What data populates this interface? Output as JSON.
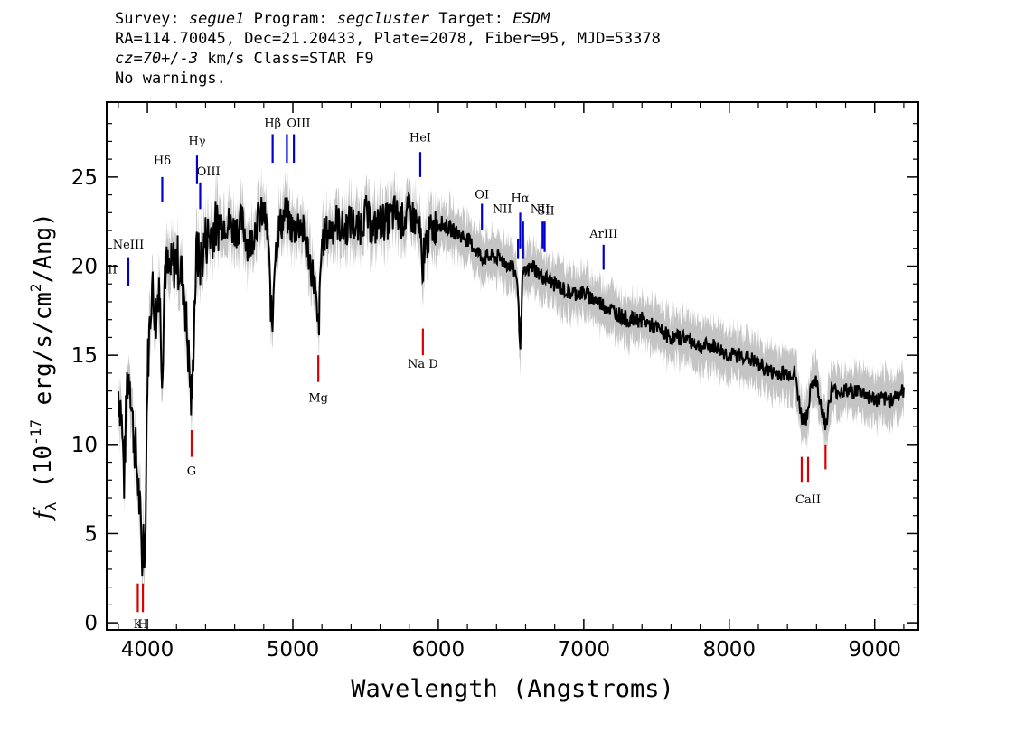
{
  "header": {
    "survey_label": "Survey:",
    "survey": "segue1",
    "program_label": "Program:",
    "program": "segcluster",
    "target_label": "Target:",
    "target": "ESDM",
    "line2": "RA=114.70045, Dec=21.20433, Plate=2078, Fiber=95, MJD=53378",
    "cz": "cz=70+/-3",
    "line3_rest": "km/s Class=STAR F9",
    "line4": "No warnings."
  },
  "chart_data": {
    "type": "line",
    "title": "",
    "xlabel": "Wavelength (Angstroms)",
    "ylabel": "f_λ (10^-17 erg/s/cm^2/Ang)",
    "xlim": [
      3720,
      9300
    ],
    "ylim": [
      -0.4,
      29.2
    ],
    "xticks": [
      4000,
      5000,
      6000,
      7000,
      8000,
      9000
    ],
    "yticks": [
      0,
      5,
      10,
      15,
      20,
      25
    ],
    "grid": false,
    "series": [
      {
        "color": "#000000",
        "x": [
          3800,
          3820,
          3840,
          3860,
          3880,
          3900,
          3920,
          3935,
          3950,
          3965,
          3970,
          3985,
          4000,
          4030,
          4060,
          4080,
          4102,
          4120,
          4150,
          4200,
          4250,
          4290,
          4300,
          4310,
          4320,
          4340,
          4360,
          4400,
          4450,
          4500,
          4550,
          4600,
          4650,
          4700,
          4750,
          4800,
          4830,
          4850,
          4861,
          4870,
          4900,
          4950,
          5000,
          5050,
          5100,
          5150,
          5170,
          5180,
          5200,
          5250,
          5300,
          5350,
          5400,
          5450,
          5500,
          5550,
          5600,
          5650,
          5700,
          5750,
          5800,
          5850,
          5880,
          5893,
          5900,
          5950,
          6000,
          6100,
          6200,
          6300,
          6400,
          6500,
          6540,
          6563,
          6580,
          6650,
          6700,
          6800,
          6900,
          7000,
          7100,
          7200,
          7300,
          7400,
          7500,
          7600,
          7700,
          7800,
          7900,
          8000,
          8100,
          8200,
          8300,
          8400,
          8450,
          8498,
          8542,
          8560,
          8600,
          8662,
          8700,
          8800,
          8900,
          9000,
          9100,
          9200
        ],
        "values": [
          13.0,
          12.0,
          8.0,
          13.5,
          14.0,
          11.0,
          9.5,
          8.0,
          6.0,
          3.0,
          5.0,
          4.5,
          14.0,
          19.0,
          17.0,
          19.5,
          14.0,
          20.0,
          19.5,
          20.5,
          19.0,
          14.0,
          12.5,
          13.0,
          17.0,
          21.0,
          20.0,
          21.5,
          22.0,
          22.5,
          22.5,
          22.0,
          22.5,
          21.0,
          22.5,
          23.0,
          21.5,
          17.5,
          16.5,
          20.0,
          22.0,
          23.0,
          22.0,
          22.5,
          21.0,
          19.0,
          16.5,
          17.0,
          21.5,
          22.0,
          22.5,
          22.0,
          22.5,
          22.0,
          23.0,
          22.0,
          22.5,
          22.5,
          23.0,
          22.5,
          23.0,
          22.5,
          21.5,
          18.0,
          21.0,
          22.0,
          22.5,
          22.0,
          21.5,
          20.5,
          20.5,
          20.0,
          19.5,
          15.5,
          19.5,
          20.0,
          19.5,
          19.0,
          18.5,
          18.5,
          18.0,
          17.5,
          17.0,
          17.0,
          16.5,
          16.0,
          16.0,
          15.5,
          15.5,
          15.0,
          15.0,
          14.5,
          14.0,
          14.0,
          14.0,
          11.5,
          11.5,
          13.5,
          13.5,
          11.0,
          13.0,
          13.0,
          13.0,
          12.5,
          12.5,
          13.0
        ]
      }
    ],
    "emission_lines": [
      {
        "label": "NeIII",
        "wave": 3869,
        "y_top": 20.5,
        "y_bottom": 18.9,
        "color": "#0000cc"
      },
      {
        "label": "Hδ",
        "wave": 4102,
        "y_top": 25.0,
        "y_bottom": 23.6,
        "color": "#0000cc"
      },
      {
        "label": "Hγ",
        "wave": 4341,
        "y_top": 26.2,
        "y_bottom": 24.6,
        "color": "#0000cc"
      },
      {
        "label": "OIII",
        "wave": 4363,
        "y_top": 24.7,
        "y_bottom": 23.2,
        "color": "#0000cc"
      },
      {
        "label": "Hβ",
        "wave": 4861,
        "y_top": 27.4,
        "y_bottom": 25.8,
        "color": "#0000cc"
      },
      {
        "label": "OIII",
        "wave": 4959,
        "y_top": 27.4,
        "y_bottom": 25.8,
        "color": "#0000cc"
      },
      {
        "label": "OIII",
        "wave": 5007,
        "y_top": 27.4,
        "y_bottom": 25.8,
        "color": "#0000cc"
      },
      {
        "label": "HeI",
        "wave": 5876,
        "y_top": 26.4,
        "y_bottom": 25.0,
        "color": "#0000cc"
      },
      {
        "label": "OI",
        "wave": 6300,
        "y_top": 23.5,
        "y_bottom": 22.0,
        "color": "#0000cc"
      },
      {
        "label": "NII",
        "wave": 6548,
        "y_top": 21.5,
        "y_bottom": 20.4,
        "color": "#0000cc"
      },
      {
        "label": "Hα",
        "wave": 6563,
        "y_top": 23.0,
        "y_bottom": 21.0,
        "color": "#0000cc"
      },
      {
        "label": "NII",
        "wave": 6583,
        "y_top": 22.5,
        "y_bottom": 20.4,
        "color": "#0000cc"
      },
      {
        "label": "SII",
        "wave": 6717,
        "y_top": 22.5,
        "y_bottom": 21.0,
        "color": "#0000cc"
      },
      {
        "label": "SII",
        "wave": 6731,
        "y_top": 22.5,
        "y_bottom": 20.8,
        "color": "#0000cc"
      },
      {
        "label": "ArIII",
        "wave": 7136,
        "y_top": 21.2,
        "y_bottom": 19.8,
        "color": "#0000cc"
      }
    ],
    "absorption_lines": [
      {
        "label": "K",
        "wave": 3934,
        "y_top": 2.2,
        "y_bottom": 0.6,
        "color": "#dd0000"
      },
      {
        "label": "H",
        "wave": 3969,
        "y_top": 2.2,
        "y_bottom": 0.6,
        "color": "#dd0000"
      },
      {
        "label": "G",
        "wave": 4304,
        "y_top": 10.8,
        "y_bottom": 9.3,
        "color": "#dd0000"
      },
      {
        "label": "Mg",
        "wave": 5175,
        "y_top": 15.0,
        "y_bottom": 13.5,
        "color": "#dd0000"
      },
      {
        "label": "Na D",
        "wave": 5894,
        "y_top": 16.5,
        "y_bottom": 15.0,
        "color": "#dd0000"
      },
      {
        "label": "CaII",
        "wave": 8498,
        "y_top": 9.3,
        "y_bottom": 7.9,
        "color": "#dd0000"
      },
      {
        "label": "CaII",
        "wave": 8542,
        "y_top": 9.3,
        "y_bottom": 7.9,
        "color": "#dd0000"
      },
      {
        "label": "CaII",
        "wave": 8662,
        "y_top": 10.0,
        "y_bottom": 8.6,
        "color": "#dd0000"
      }
    ],
    "line_labels": [
      {
        "text": "NeIII",
        "wave": 3869,
        "y": 21.0
      },
      {
        "text": "Hδ",
        "wave": 4102,
        "y": 25.7
      },
      {
        "text": "Hγ",
        "wave": 4341,
        "y": 26.8
      },
      {
        "text": "OIII",
        "wave": 4420,
        "y": 25.1
      },
      {
        "text": "Hβ",
        "wave": 4861,
        "y": 27.8
      },
      {
        "text": "OIII",
        "wave": 5040,
        "y": 27.8
      },
      {
        "text": "HeI",
        "wave": 5876,
        "y": 27.0
      },
      {
        "text": "OI",
        "wave": 6300,
        "y": 23.8
      },
      {
        "text": "NII",
        "wave": 6440,
        "y": 23.0
      },
      {
        "text": "Hα",
        "wave": 6563,
        "y": 23.6
      },
      {
        "text": "NII",
        "wave": 6700,
        "y": 23.0
      },
      {
        "text": "SII",
        "wave": 6740,
        "y": 22.9
      },
      {
        "text": "ArIII",
        "wave": 7136,
        "y": 21.6
      },
      {
        "text": "II",
        "wave": 3760,
        "y": 19.6
      },
      {
        "text": "K",
        "wave": 3934,
        "y": -0.3
      },
      {
        "text": "H",
        "wave": 3969,
        "y": -0.3
      },
      {
        "text": "G",
        "wave": 4304,
        "y": 8.3
      },
      {
        "text": "Mg",
        "wave": 5175,
        "y": 12.4
      },
      {
        "text": "Na D",
        "wave": 5894,
        "y": 14.3
      },
      {
        "text": "CaII",
        "wave": 8542,
        "y": 6.7
      }
    ]
  }
}
